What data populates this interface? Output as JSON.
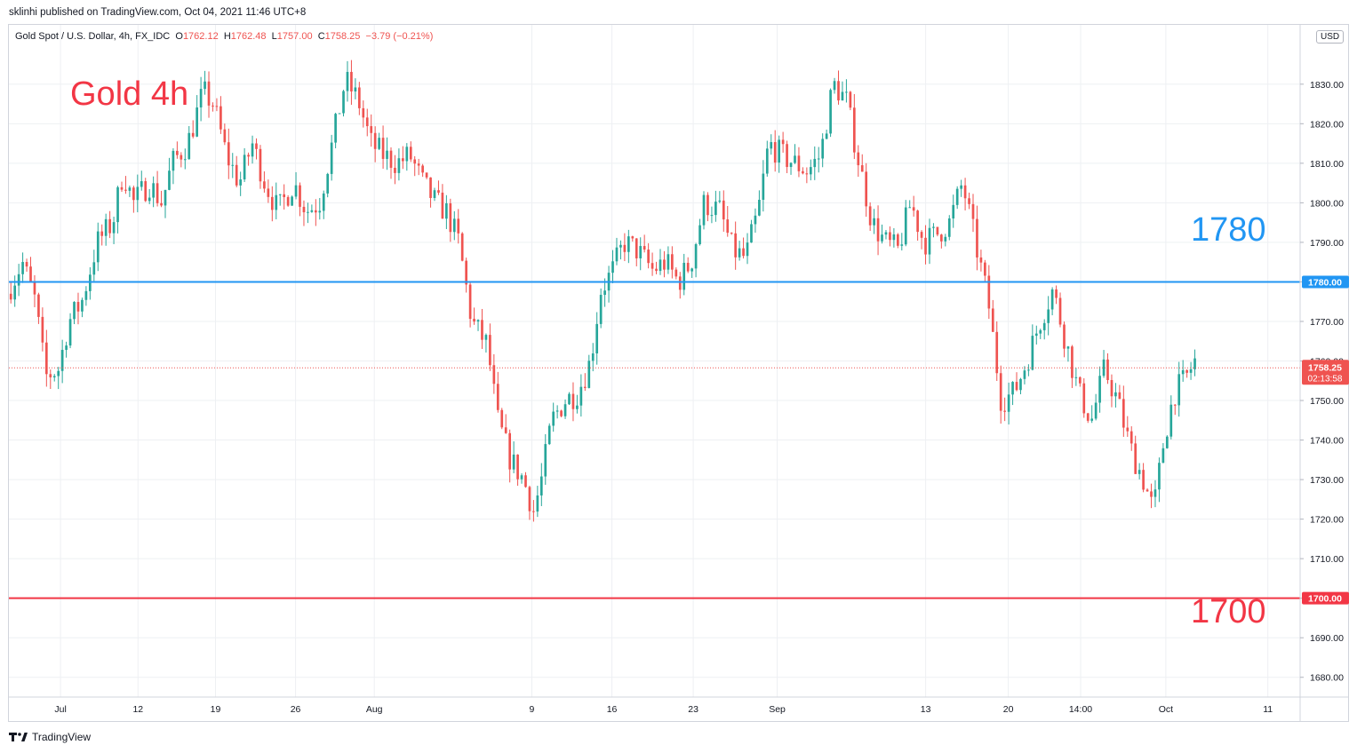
{
  "header": {
    "published": "sklinhi published on TradingView.com, Oct 04, 2021 11:46 UTC+8"
  },
  "legend": {
    "symbol": "Gold Spot / U.S. Dollar, 4h, FX_IDC",
    "open_label": "O",
    "open": "1762.12",
    "high_label": "H",
    "high": "1762.48",
    "low_label": "L",
    "low": "1757.00",
    "close_label": "C",
    "close": "1758.25",
    "change": "−3.79 (−0.21%)"
  },
  "currency_badge": "USD",
  "footer": {
    "brand": "TradingView"
  },
  "colors": {
    "up": "#26a69a",
    "down": "#ef5350",
    "level_blue": "#2196f3",
    "level_red": "#f23645"
  },
  "chart_data": {
    "type": "candlestick",
    "title": "Gold 4h",
    "y_axis": {
      "range": [
        1675,
        1845
      ],
      "ticks": [
        1680,
        1690,
        1700,
        1710,
        1720,
        1730,
        1740,
        1750,
        1760,
        1770,
        1780,
        1790,
        1800,
        1810,
        1820,
        1830
      ]
    },
    "x_axis": {
      "ticks": [
        {
          "label": "Jul",
          "x": 0.04
        },
        {
          "label": "12",
          "x": 0.1
        },
        {
          "label": "19",
          "x": 0.16
        },
        {
          "label": "26",
          "x": 0.222
        },
        {
          "label": "Aug",
          "x": 0.283
        },
        {
          "label": "9",
          "x": 0.405
        },
        {
          "label": "16",
          "x": 0.467
        },
        {
          "label": "23",
          "x": 0.53
        },
        {
          "label": "Sep",
          "x": 0.595
        },
        {
          "label": "13",
          "x": 0.71
        },
        {
          "label": "20",
          "x": 0.774
        },
        {
          "label": "14:00",
          "x": 0.83
        },
        {
          "label": "Oct",
          "x": 0.896
        },
        {
          "label": "11",
          "x": 0.975
        }
      ]
    },
    "levels": [
      {
        "name": "1780",
        "value": 1780,
        "label": "1780.00",
        "color": "#2196f3"
      },
      {
        "name": "1700",
        "value": 1700,
        "label": "1700.00",
        "color": "#f23645"
      }
    ],
    "annotations": [
      "Gold 4h",
      "1780",
      "1700"
    ],
    "last_price": {
      "value": 1758.25,
      "label": "1758.25",
      "countdown": "02:13:58"
    },
    "path": [
      [
        0,
        1777
      ],
      [
        0.012,
        1785
      ],
      [
        0.022,
        1775
      ],
      [
        0.03,
        1756
      ],
      [
        0.04,
        1758
      ],
      [
        0.048,
        1770
      ],
      [
        0.058,
        1775
      ],
      [
        0.07,
        1790
      ],
      [
        0.082,
        1795
      ],
      [
        0.09,
        1808
      ],
      [
        0.098,
        1800
      ],
      [
        0.11,
        1805
      ],
      [
        0.12,
        1800
      ],
      [
        0.128,
        1810
      ],
      [
        0.14,
        1815
      ],
      [
        0.152,
        1828
      ],
      [
        0.16,
        1825
      ],
      [
        0.17,
        1812
      ],
      [
        0.18,
        1805
      ],
      [
        0.19,
        1815
      ],
      [
        0.2,
        1805
      ],
      [
        0.21,
        1798
      ],
      [
        0.222,
        1805
      ],
      [
        0.232,
        1798
      ],
      [
        0.242,
        1800
      ],
      [
        0.252,
        1815
      ],
      [
        0.262,
        1831
      ],
      [
        0.272,
        1826
      ],
      [
        0.282,
        1815
      ],
      [
        0.292,
        1812
      ],
      [
        0.302,
        1810
      ],
      [
        0.312,
        1812
      ],
      [
        0.322,
        1805
      ],
      [
        0.332,
        1800
      ],
      [
        0.34,
        1798
      ],
      [
        0.35,
        1790
      ],
      [
        0.36,
        1770
      ],
      [
        0.372,
        1764
      ],
      [
        0.38,
        1745
      ],
      [
        0.39,
        1735
      ],
      [
        0.4,
        1730
      ],
      [
        0.408,
        1722
      ],
      [
        0.414,
        1730
      ],
      [
        0.422,
        1745
      ],
      [
        0.432,
        1750
      ],
      [
        0.442,
        1752
      ],
      [
        0.452,
        1760
      ],
      [
        0.46,
        1778
      ],
      [
        0.468,
        1782
      ],
      [
        0.478,
        1790
      ],
      [
        0.488,
        1788
      ],
      [
        0.5,
        1783
      ],
      [
        0.51,
        1785
      ],
      [
        0.52,
        1780
      ],
      [
        0.53,
        1785
      ],
      [
        0.54,
        1800
      ],
      [
        0.552,
        1798
      ],
      [
        0.562,
        1788
      ],
      [
        0.572,
        1786
      ],
      [
        0.582,
        1798
      ],
      [
        0.59,
        1815
      ],
      [
        0.6,
        1812
      ],
      [
        0.61,
        1810
      ],
      [
        0.62,
        1808
      ],
      [
        0.63,
        1812
      ],
      [
        0.64,
        1830
      ],
      [
        0.65,
        1826
      ],
      [
        0.66,
        1810
      ],
      [
        0.67,
        1795
      ],
      [
        0.68,
        1790
      ],
      [
        0.69,
        1788
      ],
      [
        0.7,
        1800
      ],
      [
        0.71,
        1790
      ],
      [
        0.72,
        1792
      ],
      [
        0.73,
        1795
      ],
      [
        0.74,
        1805
      ],
      [
        0.75,
        1790
      ],
      [
        0.76,
        1775
      ],
      [
        0.77,
        1750
      ],
      [
        0.78,
        1752
      ],
      [
        0.79,
        1760
      ],
      [
        0.8,
        1770
      ],
      [
        0.81,
        1778
      ],
      [
        0.82,
        1765
      ],
      [
        0.83,
        1752
      ],
      [
        0.84,
        1745
      ],
      [
        0.85,
        1758
      ],
      [
        0.86,
        1750
      ],
      [
        0.87,
        1738
      ],
      [
        0.88,
        1730
      ],
      [
        0.888,
        1722
      ],
      [
        0.896,
        1740
      ],
      [
        0.904,
        1752
      ],
      [
        0.912,
        1755
      ],
      [
        0.92,
        1760
      ]
    ]
  }
}
